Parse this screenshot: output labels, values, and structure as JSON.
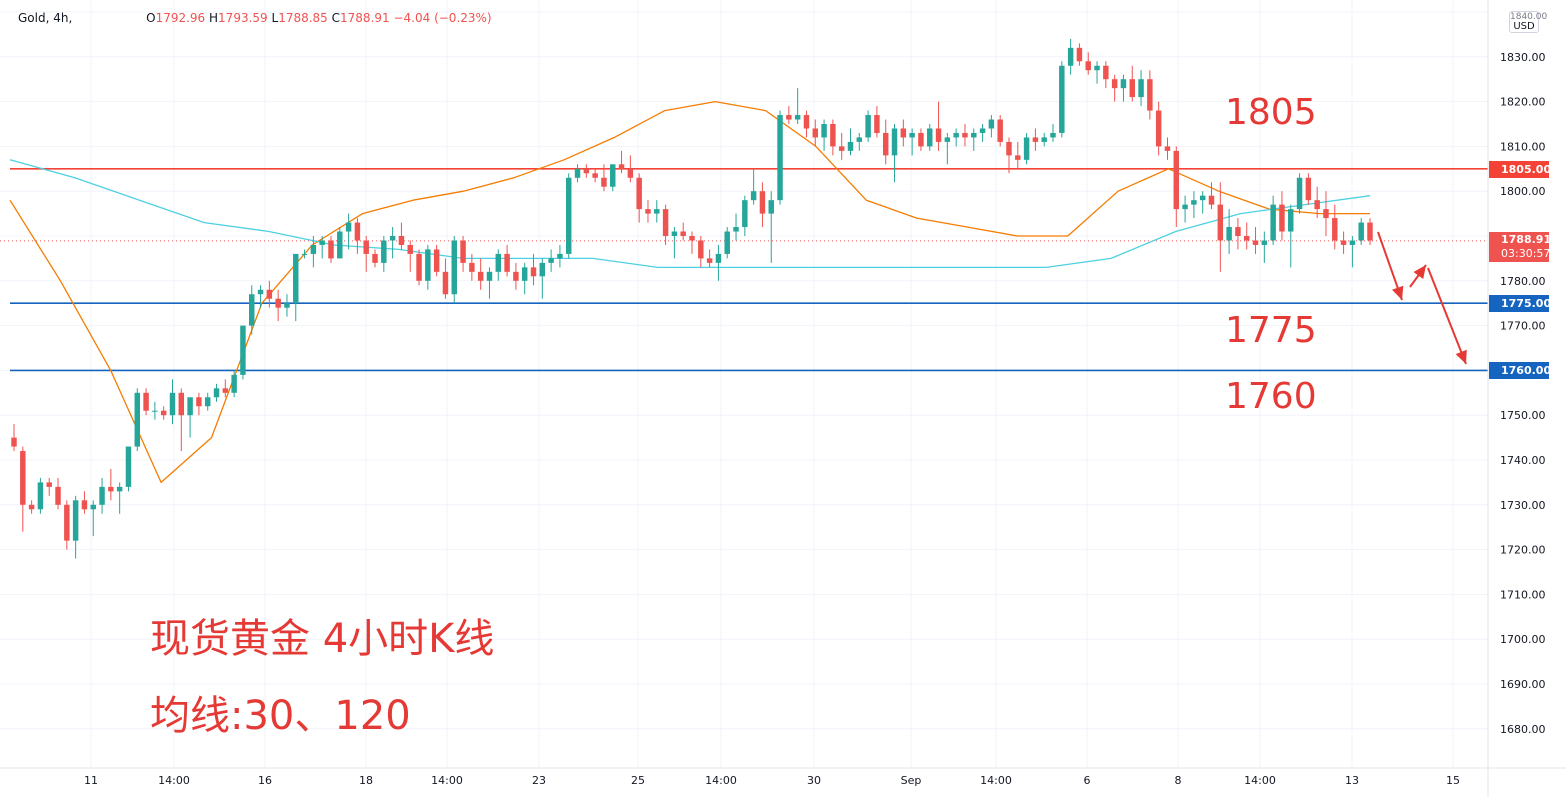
{
  "legend": {
    "symbol": "Gold, 4h,",
    "open_label": "O",
    "open": "1792.96",
    "high_label": "H",
    "high": "1793.59",
    "low_label": "L",
    "low": "1788.85",
    "close_label": "C",
    "close": "1788.91",
    "change": "−4.04 (−0.23%)"
  },
  "currency": {
    "top": "1840.00",
    "unit": "USD"
  },
  "price_tags": {
    "r1805": "1805.00",
    "last": "1788.91",
    "countdown": "03:30:57",
    "s1775": "1775.00",
    "s1760": "1760.00"
  },
  "annotations": {
    "level_1805": "1805",
    "level_1775": "1775",
    "level_1760": "1760",
    "title": "现货黄金 4小时K线",
    "ma_note": "均线:30、120"
  },
  "colors": {
    "up": "#26a69a",
    "down": "#ef5350",
    "resistance": "#f44336",
    "support": "#1565c0",
    "ma30": "#f57c00",
    "ma120": "#4dd0e1",
    "annotation": "#e53935"
  },
  "chart_data": {
    "type": "candlestick",
    "title": "现货黄金 4小时K线",
    "ylim": [
      1672,
      1840
    ],
    "y_ticks": [
      1680,
      1690,
      1700,
      1710,
      1720,
      1730,
      1740,
      1750,
      1760,
      1770,
      1780,
      1790,
      1800,
      1810,
      1820,
      1830,
      1840
    ],
    "x_ticks": [
      "11",
      "14:00",
      "16",
      "18",
      "14:00",
      "23",
      "25",
      "14:00",
      "30",
      "Sep",
      "14:00",
      "6",
      "8",
      "14:00",
      "13",
      "15"
    ],
    "series": [
      {
        "type": "ohlc",
        "ohlc": [
          [
            1745,
            1748,
            1742,
            1743
          ],
          [
            1742,
            1743,
            1724,
            1730
          ],
          [
            1730,
            1731,
            1728,
            1729
          ],
          [
            1729,
            1736,
            1728,
            1735
          ],
          [
            1735,
            1736,
            1732,
            1734
          ],
          [
            1734,
            1736,
            1729,
            1730
          ],
          [
            1730,
            1731,
            1720,
            1722
          ],
          [
            1722,
            1732,
            1718,
            1731
          ],
          [
            1731,
            1733,
            1728,
            1729
          ],
          [
            1729,
            1731,
            1723,
            1730
          ],
          [
            1730,
            1736,
            1728,
            1734
          ],
          [
            1734,
            1738,
            1731,
            1733
          ],
          [
            1733,
            1735,
            1728,
            1734
          ],
          [
            1734,
            1743,
            1733,
            1743
          ],
          [
            1743,
            1756,
            1742,
            1755
          ],
          [
            1755,
            1756,
            1750,
            1751
          ],
          [
            1751,
            1753,
            1749,
            1751
          ],
          [
            1751,
            1752,
            1749,
            1750
          ],
          [
            1750,
            1758,
            1748,
            1755
          ],
          [
            1755,
            1756,
            1742,
            1750
          ],
          [
            1750,
            1753,
            1745,
            1754
          ],
          [
            1754,
            1755,
            1750,
            1752
          ],
          [
            1752,
            1755,
            1751,
            1754
          ],
          [
            1754,
            1757,
            1753,
            1756
          ],
          [
            1756,
            1758,
            1754,
            1755
          ],
          [
            1755,
            1760,
            1754,
            1759
          ],
          [
            1759,
            1770,
            1758,
            1770
          ],
          [
            1770,
            1779,
            1768,
            1777
          ],
          [
            1777,
            1779,
            1774,
            1778
          ],
          [
            1778,
            1780,
            1774,
            1776
          ],
          [
            1776,
            1778,
            1771,
            1774
          ],
          [
            1774,
            1777,
            1772,
            1775
          ],
          [
            1775,
            1786,
            1771,
            1786
          ],
          [
            1786,
            1787,
            1785,
            1786
          ],
          [
            1786,
            1790,
            1783,
            1788
          ],
          [
            1788,
            1790,
            1785,
            1789
          ],
          [
            1789,
            1790,
            1784,
            1785
          ],
          [
            1785,
            1792,
            1785,
            1791
          ],
          [
            1791,
            1795,
            1787,
            1793
          ],
          [
            1793,
            1794,
            1786,
            1789
          ],
          [
            1789,
            1790,
            1782,
            1786
          ],
          [
            1786,
            1787,
            1783,
            1784
          ],
          [
            1784,
            1790,
            1782,
            1789
          ],
          [
            1789,
            1792,
            1785,
            1790
          ],
          [
            1790,
            1793,
            1787,
            1788
          ],
          [
            1788,
            1789,
            1782,
            1786
          ],
          [
            1786,
            1787,
            1779,
            1780
          ],
          [
            1780,
            1788,
            1778,
            1787
          ],
          [
            1787,
            1788,
            1781,
            1782
          ],
          [
            1782,
            1785,
            1776,
            1777
          ],
          [
            1777,
            1790,
            1775,
            1789
          ],
          [
            1789,
            1790,
            1782,
            1784
          ],
          [
            1784,
            1786,
            1780,
            1782
          ],
          [
            1782,
            1785,
            1778,
            1780
          ],
          [
            1780,
            1783,
            1776,
            1782
          ],
          [
            1782,
            1787,
            1780,
            1786
          ],
          [
            1786,
            1788,
            1781,
            1782
          ],
          [
            1782,
            1784,
            1778,
            1780
          ],
          [
            1780,
            1784,
            1777,
            1783
          ],
          [
            1783,
            1786,
            1779,
            1781
          ],
          [
            1781,
            1785,
            1776,
            1784
          ],
          [
            1784,
            1787,
            1782,
            1785
          ],
          [
            1785,
            1788,
            1783,
            1786
          ],
          [
            1786,
            1804,
            1785,
            1803
          ],
          [
            1803,
            1806,
            1802,
            1805
          ],
          [
            1805,
            1806,
            1803,
            1804
          ],
          [
            1804,
            1805,
            1802,
            1803
          ],
          [
            1803,
            1806,
            1800,
            1801
          ],
          [
            1801,
            1806,
            1800,
            1806
          ],
          [
            1806,
            1809,
            1804,
            1805
          ],
          [
            1805,
            1808,
            1802,
            1803
          ],
          [
            1803,
            1804,
            1793,
            1796
          ],
          [
            1796,
            1798,
            1793,
            1795
          ],
          [
            1795,
            1798,
            1793,
            1796
          ],
          [
            1796,
            1797,
            1788,
            1790
          ],
          [
            1790,
            1792,
            1785,
            1791
          ],
          [
            1791,
            1793,
            1789,
            1790
          ],
          [
            1790,
            1791,
            1786,
            1789
          ],
          [
            1789,
            1790,
            1783,
            1785
          ],
          [
            1785,
            1787,
            1783,
            1784
          ],
          [
            1784,
            1788,
            1780,
            1786
          ],
          [
            1786,
            1792,
            1785,
            1791
          ],
          [
            1791,
            1795,
            1789,
            1792
          ],
          [
            1792,
            1799,
            1790,
            1798
          ],
          [
            1798,
            1805,
            1797,
            1800
          ],
          [
            1800,
            1802,
            1792,
            1795
          ],
          [
            1795,
            1800,
            1784,
            1798
          ],
          [
            1798,
            1818,
            1797,
            1817
          ],
          [
            1817,
            1819,
            1815,
            1816
          ],
          [
            1816,
            1823,
            1815,
            1817
          ],
          [
            1817,
            1818,
            1812,
            1814
          ],
          [
            1814,
            1816,
            1810,
            1812
          ],
          [
            1812,
            1816,
            1809,
            1815
          ],
          [
            1815,
            1816,
            1808,
            1810
          ],
          [
            1810,
            1813,
            1807,
            1809
          ],
          [
            1809,
            1814,
            1808,
            1811
          ],
          [
            1811,
            1813,
            1809,
            1812
          ],
          [
            1812,
            1818,
            1811,
            1817
          ],
          [
            1817,
            1819,
            1812,
            1813
          ],
          [
            1813,
            1816,
            1806,
            1808
          ],
          [
            1808,
            1815,
            1802,
            1814
          ],
          [
            1814,
            1816,
            1810,
            1812
          ],
          [
            1812,
            1814,
            1808,
            1813
          ],
          [
            1813,
            1814,
            1809,
            1810
          ],
          [
            1810,
            1815,
            1809,
            1814
          ],
          [
            1814,
            1820,
            1809,
            1811
          ],
          [
            1811,
            1813,
            1806,
            1812
          ],
          [
            1812,
            1814,
            1810,
            1813
          ],
          [
            1813,
            1815,
            1810,
            1812
          ],
          [
            1812,
            1814,
            1809,
            1813
          ],
          [
            1813,
            1815,
            1811,
            1814
          ],
          [
            1814,
            1817,
            1812,
            1816
          ],
          [
            1816,
            1817,
            1810,
            1811
          ],
          [
            1811,
            1812,
            1804,
            1808
          ],
          [
            1808,
            1811,
            1805,
            1807
          ],
          [
            1807,
            1813,
            1806,
            1812
          ],
          [
            1812,
            1814,
            1809,
            1811
          ],
          [
            1811,
            1813,
            1810,
            1812
          ],
          [
            1812,
            1815,
            1811,
            1813
          ],
          [
            1813,
            1829,
            1812,
            1828
          ],
          [
            1828,
            1834,
            1826,
            1832
          ],
          [
            1832,
            1833,
            1828,
            1829
          ],
          [
            1829,
            1831,
            1826,
            1827
          ],
          [
            1827,
            1829,
            1824,
            1828
          ],
          [
            1828,
            1829,
            1823,
            1825
          ],
          [
            1825,
            1826,
            1820,
            1823
          ],
          [
            1823,
            1826,
            1820,
            1825
          ],
          [
            1825,
            1828,
            1820,
            1821
          ],
          [
            1821,
            1827,
            1819,
            1825
          ],
          [
            1825,
            1827,
            1816,
            1818
          ],
          [
            1818,
            1820,
            1808,
            1810
          ],
          [
            1810,
            1812,
            1807,
            1809
          ],
          [
            1809,
            1810,
            1792,
            1796
          ],
          [
            1796,
            1799,
            1793,
            1797
          ],
          [
            1797,
            1800,
            1794,
            1798
          ],
          [
            1798,
            1800,
            1795,
            1799
          ],
          [
            1799,
            1802,
            1796,
            1797
          ],
          [
            1797,
            1802,
            1782,
            1789
          ],
          [
            1789,
            1796,
            1786,
            1792
          ],
          [
            1792,
            1794,
            1787,
            1790
          ],
          [
            1790,
            1793,
            1787,
            1789
          ],
          [
            1789,
            1792,
            1786,
            1788
          ],
          [
            1788,
            1791,
            1784,
            1789
          ],
          [
            1789,
            1799,
            1788,
            1797
          ],
          [
            1797,
            1800,
            1789,
            1791
          ],
          [
            1791,
            1797,
            1783,
            1796
          ],
          [
            1796,
            1804,
            1795,
            1803
          ],
          [
            1803,
            1804,
            1797,
            1798
          ],
          [
            1798,
            1801,
            1794,
            1796
          ],
          [
            1796,
            1800,
            1790,
            1794
          ],
          [
            1794,
            1797,
            1787,
            1789
          ],
          [
            1789,
            1791,
            1786,
            1788
          ],
          [
            1788,
            1790,
            1783,
            1789
          ],
          [
            1789,
            1794,
            1788,
            1793
          ],
          [
            1793,
            1794,
            1788,
            1789
          ]
        ]
      },
      {
        "name": "",
        "type": "ma",
        "period": 30,
        "color": "#f57c00",
        "values": [
          1798,
          1780,
          1760,
          1735,
          1745,
          1775,
          1788,
          1795,
          1798,
          1800,
          1803,
          1807,
          1812,
          1818,
          1820,
          1818,
          1810,
          1798,
          1794,
          1792,
          1790,
          1790,
          1800,
          1805,
          1800,
          1796,
          1795,
          1795
        ]
      },
      {
        "name": "",
        "type": "ma",
        "period": 120,
        "color": "#4dd0e1",
        "values": [
          1807,
          1803,
          1798,
          1793,
          1791,
          1788,
          1787,
          1785,
          1785,
          1785,
          1783,
          1783,
          1783,
          1783,
          1783,
          1783,
          1783,
          1785,
          1791,
          1795,
          1797,
          1799
        ]
      }
    ],
    "horizontal_lines": [
      {
        "value": 1805,
        "color": "#f44336"
      },
      {
        "value": 1775,
        "color": "#1565c0"
      },
      {
        "value": 1760,
        "color": "#1565c0"
      }
    ],
    "last_price": 1788.91,
    "grid": true
  }
}
